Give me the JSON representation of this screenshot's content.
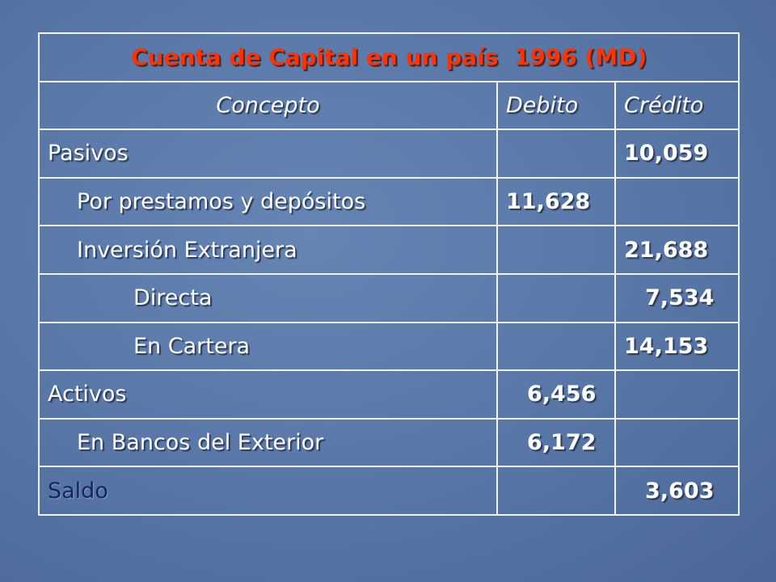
{
  "table": {
    "title": "Cuenta de Capital en un país  1996 (MD)",
    "headers": [
      "Concepto",
      "Debito",
      "Crédito"
    ],
    "rows": [
      {
        "concepto": "Pasivos",
        "credito": "10,059"
      },
      {
        "concepto": "Por prestamos y depósitos",
        "debito": "11,628"
      },
      {
        "concepto": "Inversión Extranjera",
        "credito": "21,688"
      },
      {
        "concepto": "Directa",
        "credito": "7,534"
      },
      {
        "concepto": "En Cartera",
        "credito": "14,153"
      },
      {
        "concepto": "Activos",
        "debito": "6,456"
      },
      {
        "concepto": "En Bancos del Exterior",
        "debito": "6,172"
      },
      {
        "concepto": "Saldo",
        "credito": "3,603"
      }
    ]
  }
}
